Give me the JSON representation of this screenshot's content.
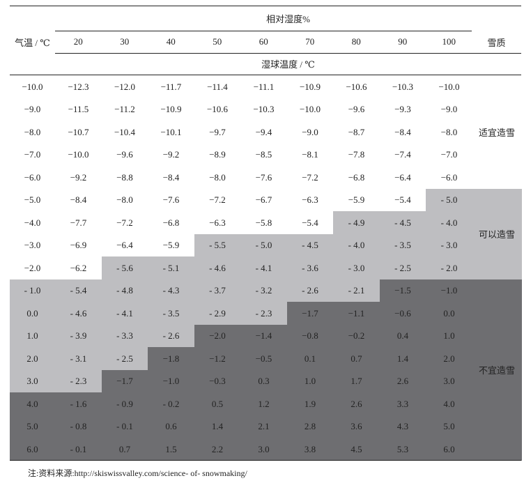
{
  "header": {
    "group_title": "相对湿度%",
    "row_label": "气温 / ℃",
    "sub_title": "湿球温度 / ℃",
    "snow_label": "雪质",
    "humidity": [
      "20",
      "30",
      "40",
      "50",
      "60",
      "70",
      "80",
      "90",
      "100"
    ]
  },
  "rows": [
    {
      "temp": "−10.0",
      "values": [
        "−12.3",
        "−12.0",
        "−11.7",
        "−11.4",
        "−11.1",
        "−10.9",
        "−10.6",
        "−10.3",
        "−10.0"
      ],
      "zones": [
        0,
        0,
        0,
        0,
        0,
        0,
        0,
        0,
        0
      ]
    },
    {
      "temp": "−9.0",
      "values": [
        "−11.5",
        "−11.2",
        "−10.9",
        "−10.6",
        "−10.3",
        "−10.0",
        "−9.6",
        "−9.3",
        "−9.0"
      ],
      "zones": [
        0,
        0,
        0,
        0,
        0,
        0,
        0,
        0,
        0
      ]
    },
    {
      "temp": "−8.0",
      "values": [
        "−10.7",
        "−10.4",
        "−10.1",
        "−9.7",
        "−9.4",
        "−9.0",
        "−8.7",
        "−8.4",
        "−8.0"
      ],
      "zones": [
        0,
        0,
        0,
        0,
        0,
        0,
        0,
        0,
        0
      ]
    },
    {
      "temp": "−7.0",
      "values": [
        "−10.0",
        "−9.6",
        "−9.2",
        "−8.9",
        "−8.5",
        "−8.1",
        "−7.8",
        "−7.4",
        "−7.0"
      ],
      "zones": [
        0,
        0,
        0,
        0,
        0,
        0,
        0,
        0,
        0
      ]
    },
    {
      "temp": "−6.0",
      "values": [
        "−9.2",
        "−8.8",
        "−8.4",
        "−8.0",
        "−7.6",
        "−7.2",
        "−6.8",
        "−6.4",
        "−6.0"
      ],
      "zones": [
        0,
        0,
        0,
        0,
        0,
        0,
        0,
        0,
        0
      ]
    },
    {
      "temp": "−5.0",
      "values": [
        "−8.4",
        "−8.0",
        "−7.6",
        "−7.2",
        "−6.7",
        "−6.3",
        "−5.9",
        "−5.4",
        "- 5.0"
      ],
      "zones": [
        0,
        0,
        0,
        0,
        0,
        0,
        0,
        0,
        1
      ]
    },
    {
      "temp": "−4.0",
      "values": [
        "−7.7",
        "−7.2",
        "−6.8",
        "−6.3",
        "−5.8",
        "−5.4",
        "- 4.9",
        "- 4.5",
        "- 4.0"
      ],
      "zones": [
        0,
        0,
        0,
        0,
        0,
        0,
        1,
        1,
        1
      ]
    },
    {
      "temp": "−3.0",
      "values": [
        "−6.9",
        "−6.4",
        "−5.9",
        "- 5.5",
        "- 5.0",
        "- 4.5",
        "- 4.0",
        "- 3.5",
        "- 3.0"
      ],
      "zones": [
        0,
        0,
        0,
        1,
        1,
        1,
        1,
        1,
        1
      ]
    },
    {
      "temp": "−2.0",
      "values": [
        "−6.2",
        "- 5.6",
        "- 5.1",
        "- 4.6",
        "- 4.1",
        "- 3.6",
        "- 3.0",
        "- 2.5",
        "- 2.0"
      ],
      "zones": [
        0,
        1,
        1,
        1,
        1,
        1,
        1,
        1,
        1
      ]
    },
    {
      "temp": "- 1.0",
      "values": [
        "- 5.4",
        "- 4.8",
        "- 4.3",
        "- 3.7",
        "- 3.2",
        "- 2.6",
        "- 2.1",
        "−1.5",
        "−1.0"
      ],
      "zones": [
        1,
        1,
        1,
        1,
        1,
        1,
        1,
        2,
        2
      ]
    },
    {
      "temp": "0.0",
      "values": [
        "- 4.6",
        "- 4.1",
        "- 3.5",
        "- 2.9",
        "- 2.3",
        "−1.7",
        "−1.1",
        "−0.6",
        "0.0"
      ],
      "zones": [
        1,
        1,
        1,
        1,
        1,
        2,
        2,
        2,
        2
      ]
    },
    {
      "temp": "1.0",
      "values": [
        "- 3.9",
        "- 3.3",
        "- 2.6",
        "−2.0",
        "−1.4",
        "−0.8",
        "−0.2",
        "0.4",
        "1.0"
      ],
      "zones": [
        1,
        1,
        1,
        2,
        2,
        2,
        2,
        2,
        2
      ]
    },
    {
      "temp": "2.0",
      "values": [
        "- 3.1",
        "- 2.5",
        "−1.8",
        "−1.2",
        "−0.5",
        "0.1",
        "0.7",
        "1.4",
        "2.0"
      ],
      "zones": [
        1,
        1,
        2,
        2,
        2,
        2,
        2,
        2,
        2
      ]
    },
    {
      "temp": "3.0",
      "values": [
        "- 2.3",
        "−1.7",
        "−1.0",
        "−0.3",
        "0.3",
        "1.0",
        "1.7",
        "2.6",
        "3.0"
      ],
      "zones": [
        1,
        2,
        2,
        2,
        2,
        2,
        2,
        2,
        2
      ]
    },
    {
      "temp": "4.0",
      "values": [
        "- 1.6",
        "- 0.9",
        "- 0.2",
        "0.5",
        "1.2",
        "1.9",
        "2.6",
        "3.3",
        "4.0"
      ],
      "zones": [
        2,
        2,
        2,
        2,
        2,
        2,
        2,
        2,
        2
      ]
    },
    {
      "temp": "5.0",
      "values": [
        "- 0.8",
        "- 0.1",
        "0.6",
        "1.4",
        "2.1",
        "2.8",
        "3.6",
        "4.3",
        "5.0"
      ],
      "zones": [
        2,
        2,
        2,
        2,
        2,
        2,
        2,
        2,
        2
      ]
    },
    {
      "temp": "6.0",
      "values": [
        "- 0.1",
        "0.7",
        "1.5",
        "2.2",
        "3.0",
        "3.8",
        "4.5",
        "5.3",
        "6.0"
      ],
      "zones": [
        2,
        2,
        2,
        2,
        2,
        2,
        2,
        2,
        2
      ]
    }
  ],
  "snow_quality": [
    {
      "label": "适宜造雪",
      "zone": 0
    },
    {
      "label": "可以造雪",
      "zone": 1
    },
    {
      "label": "不宜造雪",
      "zone": 2
    }
  ],
  "zone_colors": [
    "#ffffff",
    "#bebec1",
    "#6e6e71"
  ],
  "footnote": "注:资料来源:http://skiswissvalley.com/science- of- snowmaking/"
}
